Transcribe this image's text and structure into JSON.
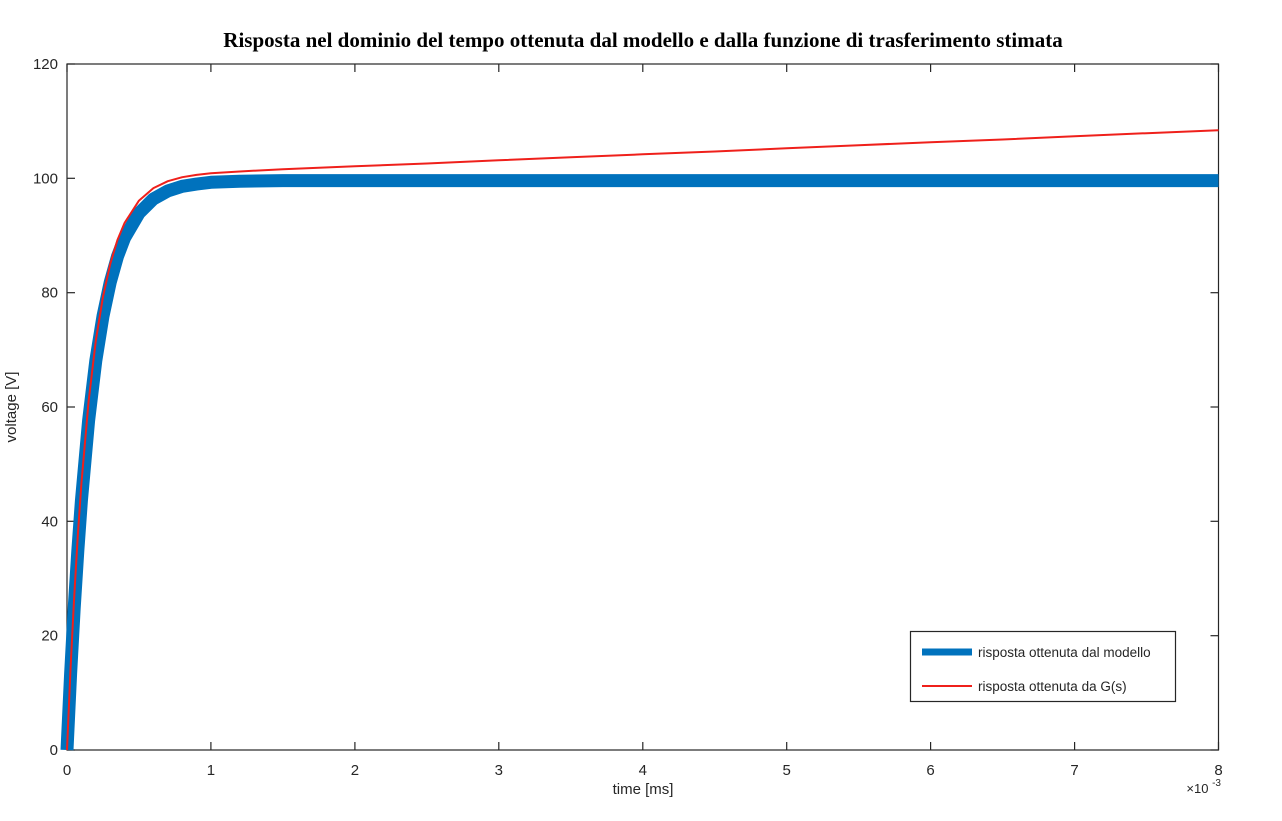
{
  "figure": {
    "background": "#ffffff",
    "axis_color": "#262626",
    "tick_label_color": "#262626"
  },
  "chart_data": {
    "type": "line",
    "title": "Risposta nel dominio del tempo ottenuta dal modello e dalla funzione di trasferimento stimata",
    "xlabel": "time [ms]",
    "ylabel": "voltage [V]",
    "x_offset": {
      "base": "×10",
      "exp": "-3"
    },
    "xlim": [
      0,
      8
    ],
    "ylim": [
      0,
      120
    ],
    "xticks": [
      0,
      1,
      2,
      3,
      4,
      5,
      6,
      7,
      8
    ],
    "xtick_labels": [
      "0",
      "1",
      "2",
      "3",
      "4",
      "5",
      "6",
      "7",
      "8"
    ],
    "yticks": [
      0,
      20,
      40,
      60,
      80,
      100,
      120
    ],
    "ytick_labels": [
      "0",
      "20",
      "40",
      "60",
      "80",
      "100",
      "120"
    ],
    "grid": false,
    "box": true,
    "tick_direction": "in",
    "legend": {
      "position": "south-east",
      "entries": [
        {
          "label": "risposta ottenuta dal modello",
          "color": "#0072bd",
          "swatch_width": 7
        },
        {
          "label": "risposta ottenuta da G(s)",
          "color": "#ef201b",
          "swatch_width": 2
        }
      ]
    },
    "series": [
      {
        "name": "risposta ottenuta dal modello",
        "color": "#0072bd",
        "line_width": 13,
        "x": [
          0,
          0.025,
          0.05,
          0.075,
          0.1,
          0.15,
          0.2,
          0.25,
          0.3,
          0.35,
          0.4,
          0.5,
          0.6,
          0.7,
          0.8,
          0.9,
          1.0,
          1.2,
          1.5,
          2.0,
          3.0,
          4.0,
          5.0,
          6.0,
          7.0,
          8.0
        ],
        "y": [
          0,
          13.3,
          24.8,
          34.8,
          43.6,
          57.6,
          68.1,
          75.9,
          81.8,
          86.3,
          89.6,
          93.9,
          96.4,
          97.8,
          98.6,
          99.0,
          99.3,
          99.5,
          99.6,
          99.6,
          99.6,
          99.6,
          99.6,
          99.6,
          99.6,
          99.6
        ]
      },
      {
        "name": "risposta ottenuta da G(s)",
        "color": "#ef201b",
        "line_width": 2,
        "x": [
          0,
          0.025,
          0.05,
          0.075,
          0.1,
          0.15,
          0.2,
          0.25,
          0.3,
          0.35,
          0.4,
          0.5,
          0.6,
          0.7,
          0.8,
          0.9,
          1.0,
          1.2,
          1.5,
          2.0,
          2.5,
          3.0,
          3.5,
          4.0,
          4.5,
          5.0,
          5.5,
          6.0,
          6.5,
          7.0,
          7.5,
          8.0
        ],
        "y": [
          0,
          14.5,
          26.8,
          37.5,
          46.6,
          61.0,
          71.6,
          79.3,
          85.0,
          89.2,
          92.2,
          96.1,
          98.3,
          99.5,
          100.2,
          100.6,
          100.9,
          101.2,
          101.6,
          102.1,
          102.6,
          103.15,
          103.7,
          104.2,
          104.7,
          105.25,
          105.8,
          106.3,
          106.8,
          107.35,
          107.9,
          108.4
        ]
      }
    ]
  }
}
